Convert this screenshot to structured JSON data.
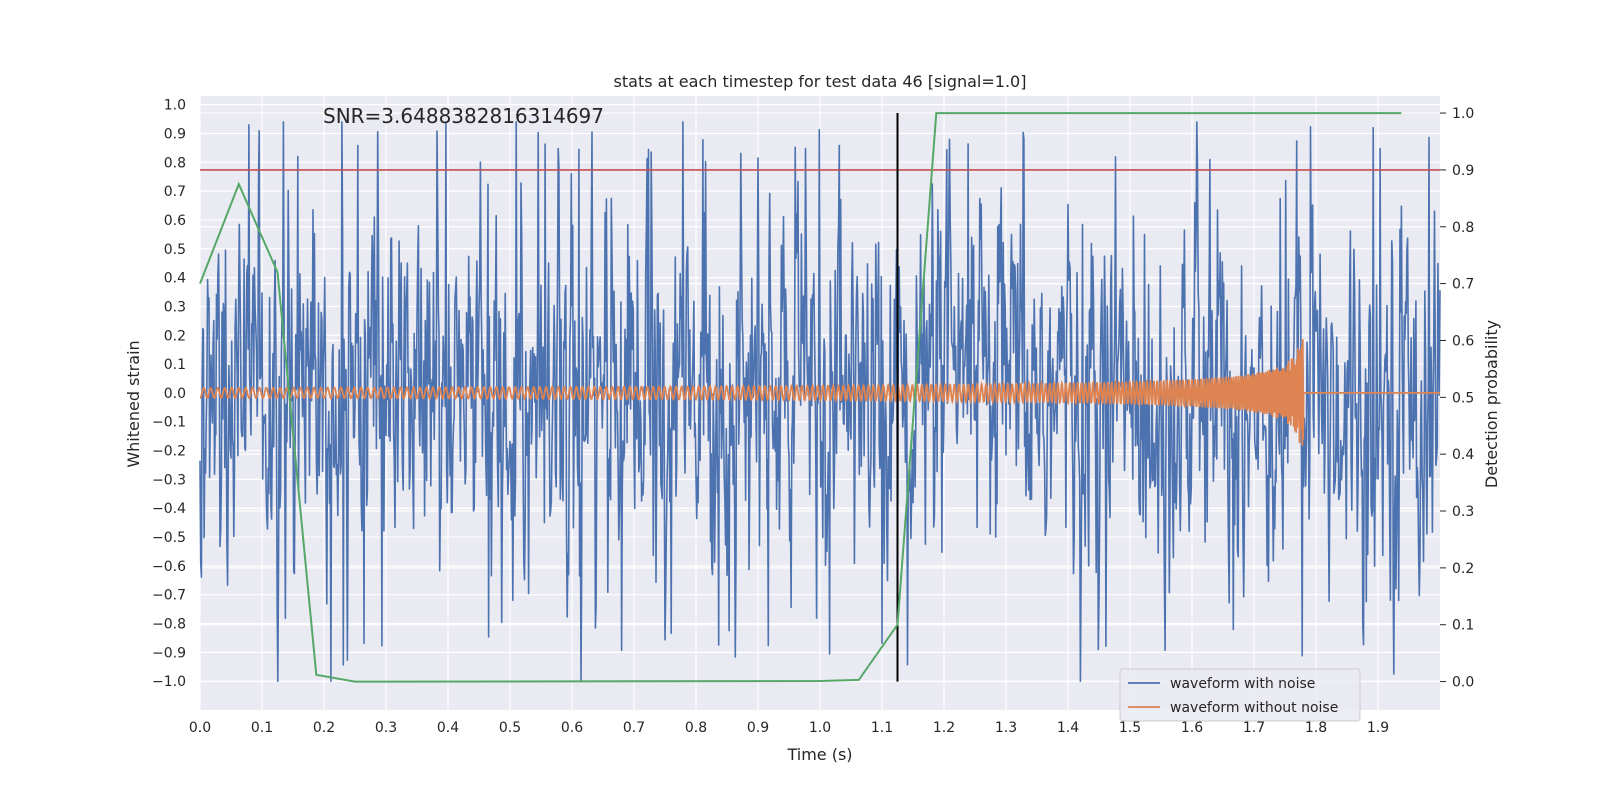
{
  "chart_data": {
    "type": "line",
    "title": "stats at each timestep for test data 46 [signal=1.0]",
    "annotation": "SNR=3.6488382816314697",
    "xlabel": "Time (s)",
    "ylabel_left": "Whitened strain",
    "ylabel_right": "Detection probability",
    "xlim": [
      0.0,
      2.0
    ],
    "ylim_left": [
      -1.1,
      1.03
    ],
    "ylim_right": [
      -0.05,
      1.03
    ],
    "x_ticks": [
      "0.0",
      "0.1",
      "0.2",
      "0.3",
      "0.4",
      "0.5",
      "0.6",
      "0.7",
      "0.8",
      "0.9",
      "1.0",
      "1.1",
      "1.2",
      "1.3",
      "1.4",
      "1.5",
      "1.6",
      "1.7",
      "1.8",
      "1.9"
    ],
    "y_left_ticks": [
      "1.0",
      "0.9",
      "0.8",
      "0.7",
      "0.6",
      "0.5",
      "0.4",
      "0.3",
      "0.2",
      "0.1",
      "0.0",
      "-0.1",
      "-0.2",
      "-0.3",
      "-0.4",
      "-0.5",
      "-0.6",
      "-0.7",
      "-0.8",
      "-0.9",
      "-1.0"
    ],
    "y_right_ticks": [
      "1.0",
      "0.9",
      "0.8",
      "0.7",
      "0.6",
      "0.5",
      "0.4",
      "0.3",
      "0.2",
      "0.1",
      "0.0"
    ],
    "grid": true,
    "legend_position": "lower-right",
    "series": [
      {
        "name": "waveform with noise",
        "axis": "left",
        "color": "#4c72b0",
        "description": "dense whitened noise oscillating roughly between -1.0 and 0.94 over 0 to 2.0 s"
      },
      {
        "name": "waveform without noise",
        "axis": "left",
        "color": "#dd8452",
        "description": "chirp signal, small amplitude growing to about 0.27 near 1.77 s, then zero after merger",
        "merger_time": 1.78,
        "peak_amplitude": 0.27
      },
      {
        "name": "detection probability",
        "axis": "right",
        "color": "#55a868",
        "x": [
          0.0,
          0.0625,
          0.125,
          0.1875,
          0.25,
          0.3125,
          1.0,
          1.0625,
          1.125,
          1.1875,
          1.25,
          1.9375
        ],
        "y": [
          0.7,
          0.875,
          0.72,
          0.012,
          0.0,
          0.0,
          0.001,
          0.003,
          0.1,
          1.0,
          1.0,
          1.0
        ]
      }
    ],
    "threshold": {
      "value": 0.9,
      "axis": "right",
      "color": "#c44e52"
    },
    "marker_line": {
      "x": 1.125,
      "color": "#000000"
    },
    "legend": [
      "waveform with noise",
      "waveform without noise"
    ]
  }
}
